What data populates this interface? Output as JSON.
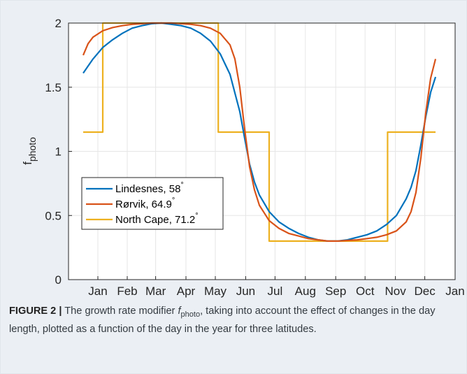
{
  "caption": {
    "label": "FIGURE 2 |",
    "text_before": "The growth rate modifier",
    "symbol": "f",
    "symbol_sub": "photo",
    "text_after": ", taking into account the effect of changes in the day length, plotted as a function of the day in the year for three latitudes."
  },
  "chart_data": {
    "type": "line",
    "ylabel": {
      "main": "f",
      "sub": "photo"
    },
    "xlim": [
      -15,
      380
    ],
    "ylim": [
      0,
      2
    ],
    "x_ticks": [
      {
        "day": 15,
        "label": "Jan"
      },
      {
        "day": 45,
        "label": "Feb"
      },
      {
        "day": 74,
        "label": "Mar"
      },
      {
        "day": 105,
        "label": "Apr"
      },
      {
        "day": 135,
        "label": "May"
      },
      {
        "day": 166,
        "label": "Jun"
      },
      {
        "day": 196,
        "label": "Jul"
      },
      {
        "day": 227,
        "label": "Aug"
      },
      {
        "day": 258,
        "label": "Sep"
      },
      {
        "day": 288,
        "label": "Oct"
      },
      {
        "day": 319,
        "label": "Nov"
      },
      {
        "day": 349,
        "label": "Dec"
      },
      {
        "day": 380,
        "label": "Jan"
      }
    ],
    "y_ticks": [
      {
        "value": 0,
        "label": "0"
      },
      {
        "value": 0.5,
        "label": "0.5"
      },
      {
        "value": 1,
        "label": "1"
      },
      {
        "value": 1.5,
        "label": "1.5"
      },
      {
        "value": 2,
        "label": "2"
      }
    ],
    "grid": true,
    "legend_position": "center-left",
    "series": [
      {
        "name": "Lindesnes, 58",
        "degree": "°",
        "color": "#0072bd",
        "x": [
          0,
          10,
          20,
          30,
          40,
          50,
          60,
          70,
          80,
          90,
          100,
          110,
          120,
          130,
          140,
          150,
          160,
          165,
          170,
          175,
          180,
          190,
          200,
          210,
          220,
          230,
          240,
          250,
          260,
          270,
          280,
          290,
          300,
          310,
          320,
          330,
          335,
          340,
          345,
          350,
          355,
          360
        ],
        "y": [
          1.61,
          1.72,
          1.81,
          1.87,
          1.92,
          1.96,
          1.98,
          1.995,
          2.0,
          1.99,
          1.98,
          1.96,
          1.92,
          1.86,
          1.76,
          1.6,
          1.31,
          1.1,
          0.9,
          0.76,
          0.66,
          0.53,
          0.45,
          0.4,
          0.36,
          0.33,
          0.31,
          0.3,
          0.3,
          0.31,
          0.33,
          0.35,
          0.38,
          0.43,
          0.5,
          0.63,
          0.72,
          0.85,
          1.05,
          1.27,
          1.46,
          1.58
        ]
      },
      {
        "name": "Rørvik, 64.9",
        "degree": "°",
        "color": "#d95319",
        "x": [
          0,
          5,
          10,
          20,
          30,
          40,
          50,
          60,
          70,
          80,
          90,
          100,
          110,
          120,
          130,
          140,
          150,
          155,
          160,
          165,
          170,
          175,
          180,
          190,
          200,
          210,
          220,
          230,
          240,
          250,
          260,
          270,
          280,
          290,
          300,
          310,
          320,
          330,
          335,
          340,
          345,
          350,
          355,
          360
        ],
        "y": [
          1.75,
          1.84,
          1.89,
          1.94,
          1.965,
          1.98,
          1.99,
          1.995,
          2.0,
          2.0,
          2.0,
          1.995,
          1.99,
          1.98,
          1.96,
          1.92,
          1.83,
          1.72,
          1.5,
          1.17,
          0.88,
          0.7,
          0.58,
          0.46,
          0.4,
          0.36,
          0.34,
          0.32,
          0.31,
          0.3,
          0.3,
          0.305,
          0.31,
          0.32,
          0.33,
          0.35,
          0.38,
          0.45,
          0.53,
          0.68,
          0.95,
          1.3,
          1.57,
          1.72
        ]
      },
      {
        "name": "North Cape, 71.2",
        "degree": "°",
        "color": "#edb120",
        "x": [
          0,
          20,
          20,
          138,
          138,
          190,
          190,
          311,
          311,
          360
        ],
        "y": [
          1.15,
          1.15,
          2.0,
          2.0,
          1.15,
          1.15,
          0.3,
          0.3,
          1.15,
          1.15
        ]
      }
    ]
  }
}
